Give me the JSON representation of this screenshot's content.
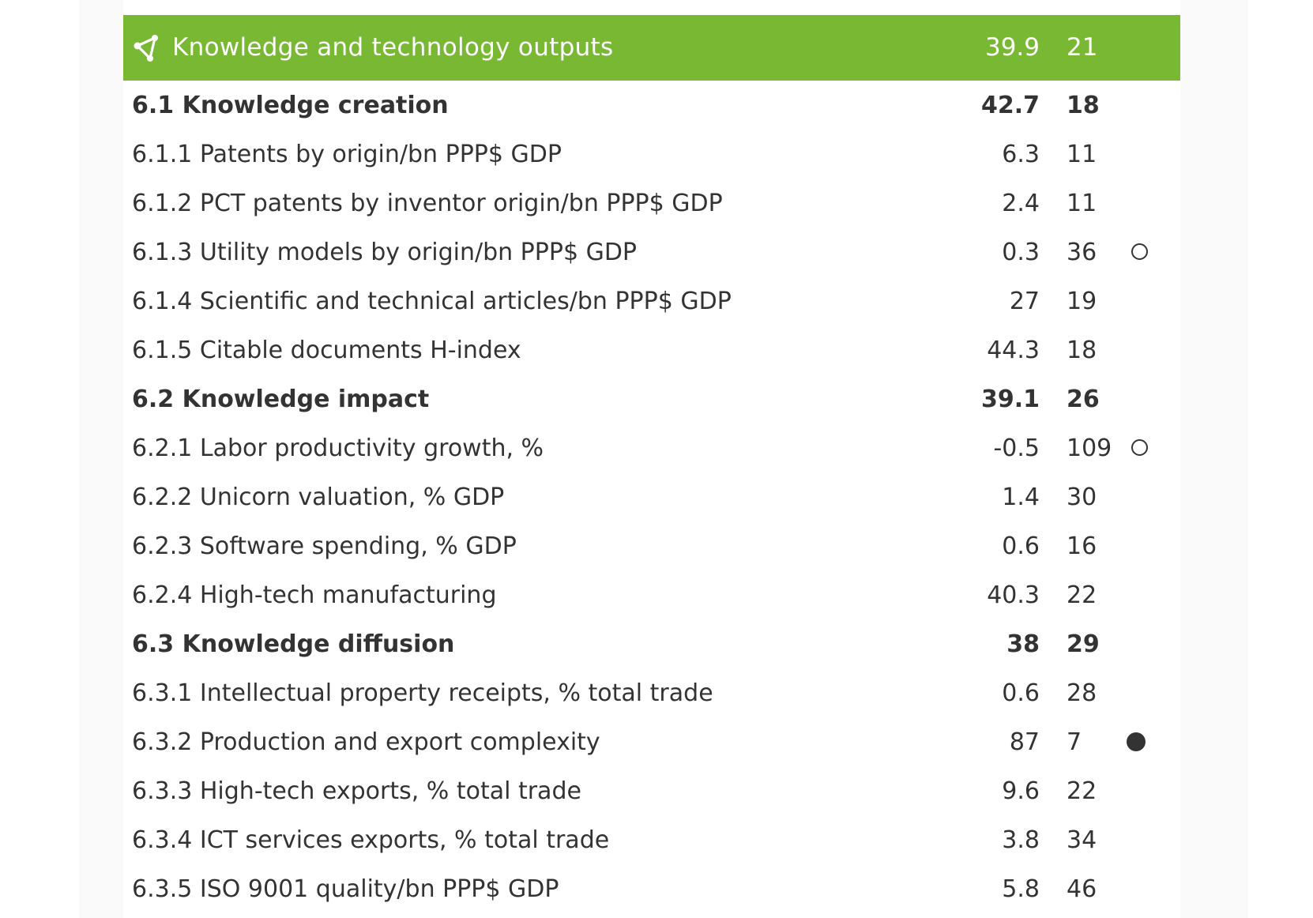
{
  "header": {
    "icon": "share-nodes-icon",
    "title": "Knowledge and technology outputs",
    "score": "39.9",
    "rank": "21"
  },
  "colors": {
    "header_background": "#78b833",
    "text": "#333333",
    "marker": "#333333"
  },
  "marker_legend_types": [
    "weakness-hollow-circle",
    "strength-filled-circle"
  ],
  "rows": [
    {
      "label": "6.1 Knowledge creation",
      "score": "42.7",
      "rank": "18",
      "level": "section",
      "marker": null
    },
    {
      "label": "6.1.1 Patents by origin/bn PPP$ GDP",
      "score": "6.3",
      "rank": "11",
      "level": "indicator",
      "marker": null
    },
    {
      "label": "6.1.2 PCT patents by inventor origin/bn PPP$ GDP",
      "score": "2.4",
      "rank": "11",
      "level": "indicator",
      "marker": null
    },
    {
      "label": "6.1.3 Utility models by origin/bn PPP$ GDP",
      "score": "0.3",
      "rank": "36",
      "level": "indicator",
      "marker": "weak"
    },
    {
      "label": "6.1.4 Scientific and technical articles/bn PPP$ GDP",
      "score": "27",
      "rank": "19",
      "level": "indicator",
      "marker": null
    },
    {
      "label": "6.1.5 Citable documents H-index",
      "score": "44.3",
      "rank": "18",
      "level": "indicator",
      "marker": null
    },
    {
      "label": "6.2 Knowledge impact",
      "score": "39.1",
      "rank": "26",
      "level": "section",
      "marker": null
    },
    {
      "label": "6.2.1 Labor productivity growth, %",
      "score": "-0.5",
      "rank": "109",
      "level": "indicator",
      "marker": "weak"
    },
    {
      "label": "6.2.2 Unicorn valuation, % GDP",
      "score": "1.4",
      "rank": "30",
      "level": "indicator",
      "marker": null
    },
    {
      "label": "6.2.3 Software spending, % GDP",
      "score": "0.6",
      "rank": "16",
      "level": "indicator",
      "marker": null
    },
    {
      "label": "6.2.4 High-tech manufacturing",
      "score": "40.3",
      "rank": "22",
      "level": "indicator",
      "marker": null
    },
    {
      "label": "6.3 Knowledge diffusion",
      "score": "38",
      "rank": "29",
      "level": "section",
      "marker": null
    },
    {
      "label": "6.3.1 Intellectual property receipts, % total trade",
      "score": "0.6",
      "rank": "28",
      "level": "indicator",
      "marker": null
    },
    {
      "label": "6.3.2 Production and export complexity",
      "score": "87",
      "rank": "7",
      "level": "indicator",
      "marker": "strong"
    },
    {
      "label": "6.3.3 High-tech exports, % total trade",
      "score": "9.6",
      "rank": "22",
      "level": "indicator",
      "marker": null
    },
    {
      "label": "6.3.4 ICT services exports, % total trade",
      "score": "3.8",
      "rank": "34",
      "level": "indicator",
      "marker": null
    },
    {
      "label": "6.3.5 ISO 9001 quality/bn PPP$ GDP",
      "score": "5.8",
      "rank": "46",
      "level": "indicator",
      "marker": null
    }
  ]
}
